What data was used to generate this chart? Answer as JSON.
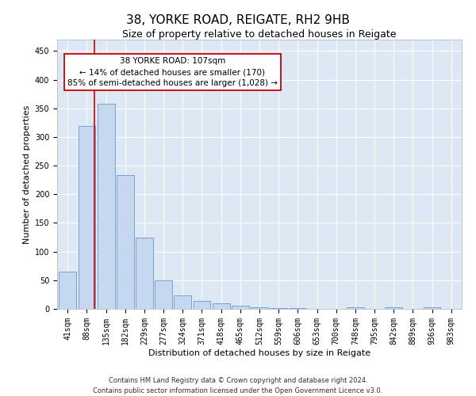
{
  "title": "38, YORKE ROAD, REIGATE, RH2 9HB",
  "subtitle": "Size of property relative to detached houses in Reigate",
  "xlabel": "Distribution of detached houses by size in Reigate",
  "ylabel": "Number of detached properties",
  "footer_line1": "Contains HM Land Registry data © Crown copyright and database right 2024.",
  "footer_line2": "Contains public sector information licensed under the Open Government Licence v3.0.",
  "bar_labels": [
    "41sqm",
    "88sqm",
    "135sqm",
    "182sqm",
    "229sqm",
    "277sqm",
    "324sqm",
    "371sqm",
    "418sqm",
    "465sqm",
    "512sqm",
    "559sqm",
    "606sqm",
    "653sqm",
    "700sqm",
    "748sqm",
    "795sqm",
    "842sqm",
    "889sqm",
    "936sqm",
    "983sqm"
  ],
  "bar_values": [
    65,
    320,
    358,
    233,
    125,
    50,
    23,
    14,
    9,
    5,
    3,
    1,
    1,
    0,
    0,
    3,
    0,
    3,
    0,
    3,
    0
  ],
  "bar_color": "#c5d8f0",
  "bar_edge_color": "#6699cc",
  "ylim": [
    0,
    470
  ],
  "yticks": [
    0,
    50,
    100,
    150,
    200,
    250,
    300,
    350,
    400,
    450
  ],
  "annotation_text_line1": "38 YORKE ROAD: 107sqm",
  "annotation_text_line2": "← 14% of detached houses are smaller (170)",
  "annotation_text_line3": "85% of semi-detached houses are larger (1,028) →",
  "annotation_box_color": "#ffffff",
  "annotation_box_edge_color": "#cc0000",
  "vline_color": "#cc0000",
  "background_color": "#ffffff",
  "plot_background": "#dde8f5",
  "grid_color": "#ffffff",
  "title_fontsize": 11,
  "subtitle_fontsize": 9,
  "axis_label_fontsize": 8,
  "tick_fontsize": 7,
  "annotation_fontsize": 7.5
}
